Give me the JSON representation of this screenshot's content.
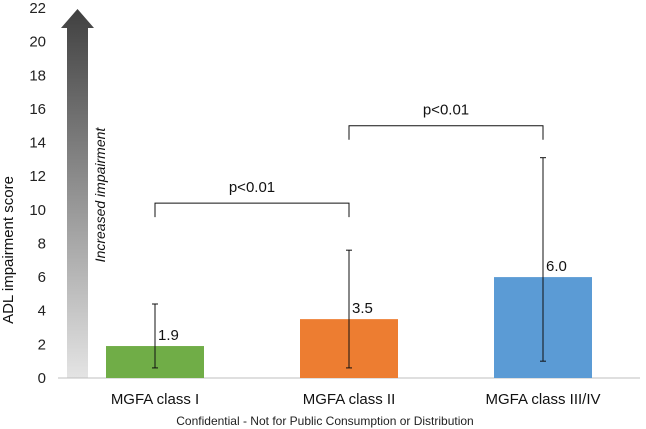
{
  "chart_data": {
    "type": "bar",
    "categories": [
      "MGFA class I",
      "MGFA class II",
      "MGFA class III/IV"
    ],
    "values": [
      1.9,
      3.5,
      6.0
    ],
    "value_labels": [
      "1.9",
      "3.5",
      "6.0"
    ],
    "error_bars": [
      {
        "low": 0.6,
        "high": 4.4
      },
      {
        "low": 0.6,
        "high": 7.6
      },
      {
        "low": 1.0,
        "high": 13.1
      }
    ],
    "colors": [
      "#70ad47",
      "#ed7d31",
      "#5b9bd5"
    ],
    "ylabel": "ADL impairment score",
    "xlabel": "",
    "ylim": [
      0,
      22
    ],
    "yticks": [
      0,
      2,
      4,
      6,
      8,
      10,
      12,
      14,
      16,
      18,
      20,
      22
    ],
    "arrow_label": "Increased impairment",
    "comparisons": [
      {
        "from": 0,
        "to": 1,
        "label": "p<0.01",
        "level": 10.4
      },
      {
        "from": 1,
        "to": 2,
        "label": "p<0.01",
        "level": 15.0
      }
    ]
  },
  "footer": "Confidential - Not for Public Consumption or Distribution"
}
